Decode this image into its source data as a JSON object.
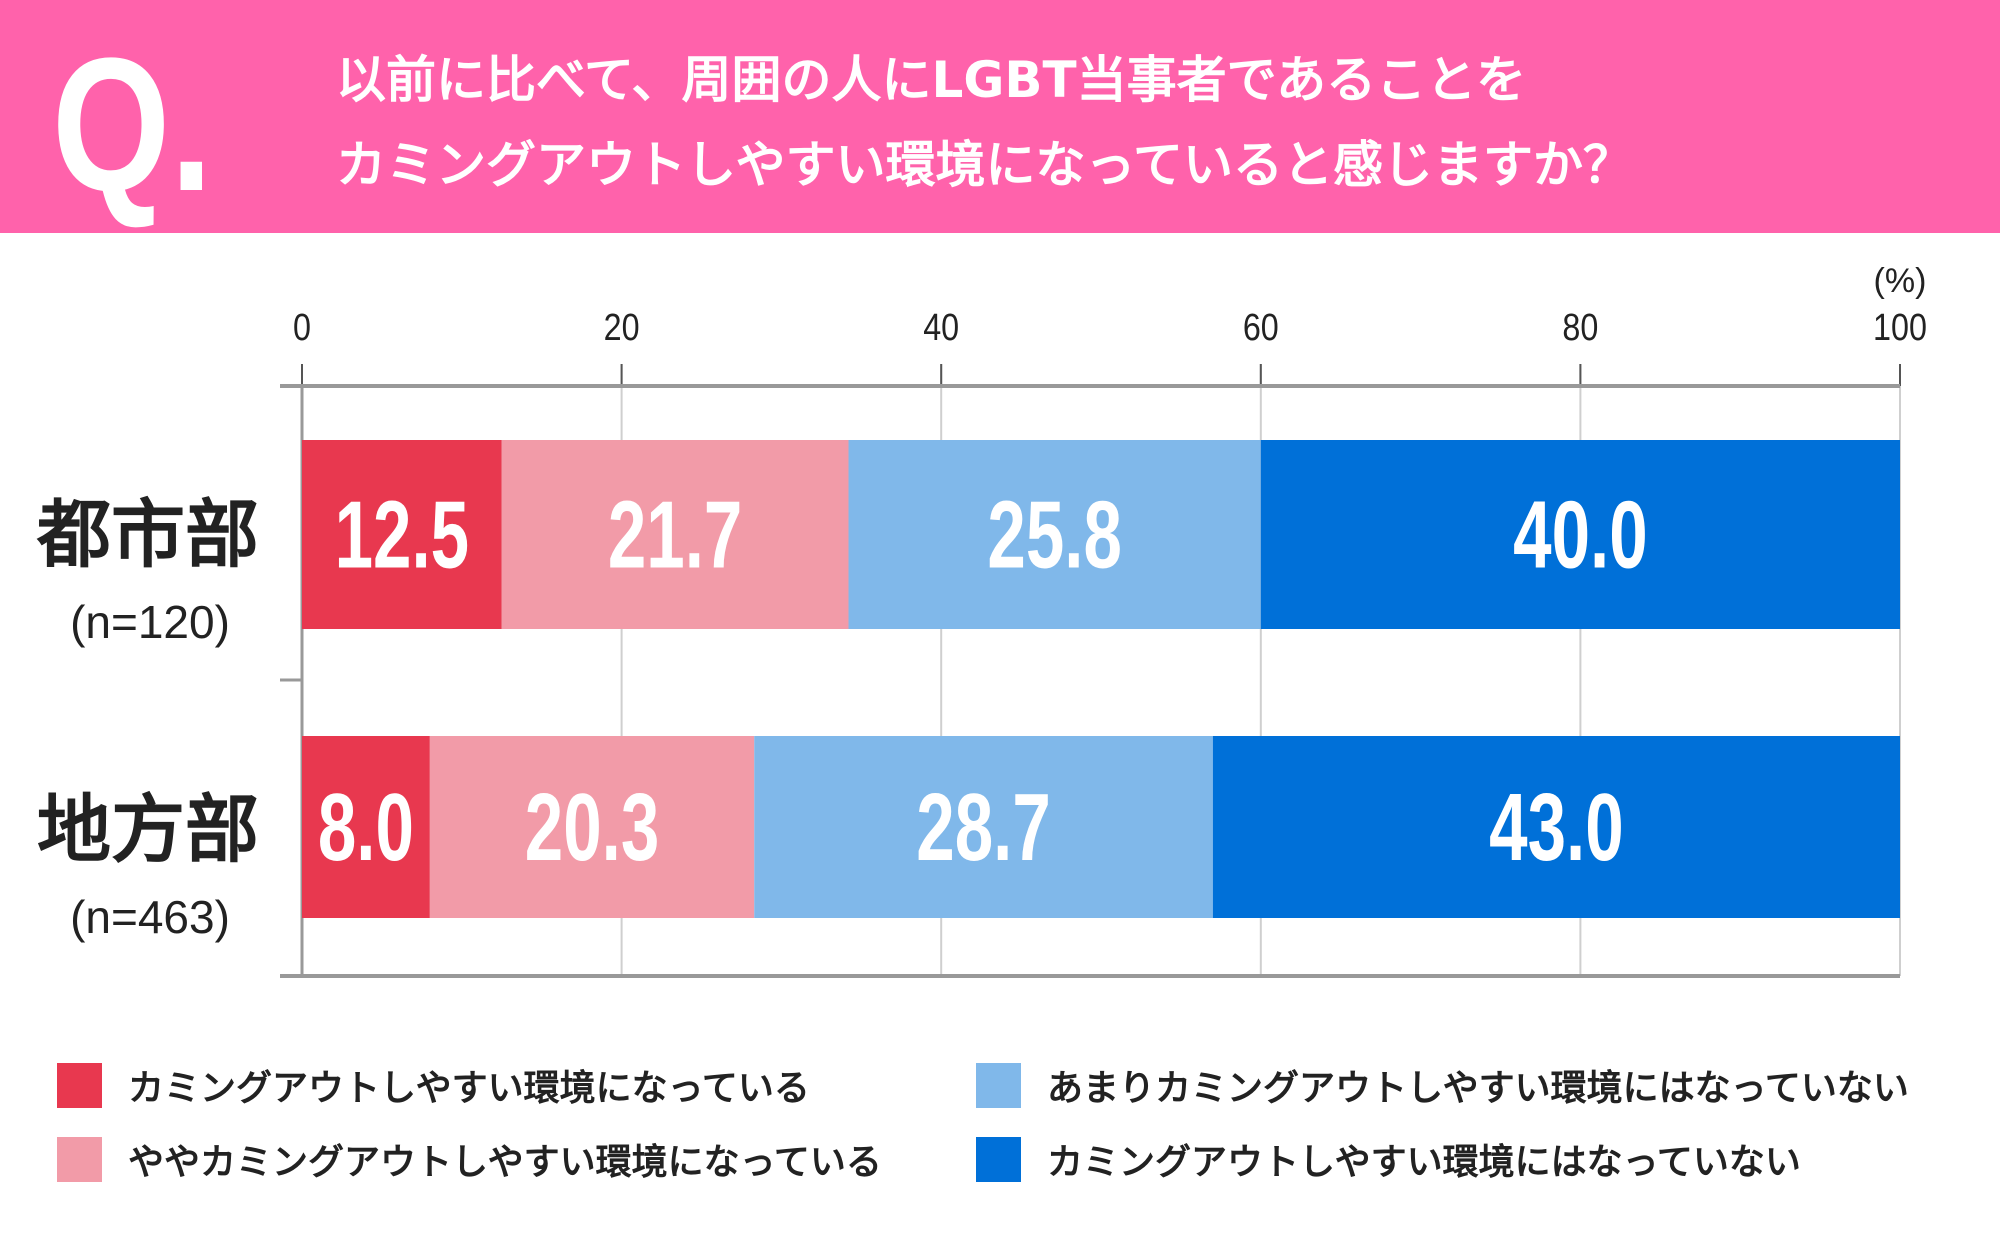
{
  "header": {
    "q_mark": "Q.",
    "question_line1": "以前に比べて、周囲の人にLGBT当事者であることを",
    "question_line2": "カミングアウトしやすい環境になっていると感じますか？",
    "background_color": "#ff62ab"
  },
  "chart_data": {
    "type": "bar",
    "orientation": "horizontal",
    "stacked": true,
    "unit_label": "(%)",
    "xlim": [
      0,
      100
    ],
    "x_ticks": [
      "0",
      "20",
      "40",
      "60",
      "80",
      "100"
    ],
    "grid": true,
    "legend_placement": "bottom",
    "categories": [
      {
        "name": "都市部",
        "n": "(n=120)"
      },
      {
        "name": "地方部",
        "n": "(n=463)"
      }
    ],
    "series": [
      {
        "name": "カミングアウトしやすい環境になっている",
        "color": "#e8384f",
        "values": [
          12.5,
          8.0
        ],
        "labels": [
          "12.5",
          "8.0"
        ]
      },
      {
        "name": "ややカミングアウトしやすい環境になっている",
        "color": "#f29ba8",
        "values": [
          21.7,
          20.3
        ],
        "labels": [
          "21.7",
          "20.3"
        ]
      },
      {
        "name": "あまりカミングアウトしやすい環境にはなっていない",
        "color": "#80b8ea",
        "values": [
          25.8,
          28.7
        ],
        "labels": [
          "25.8",
          "28.7"
        ]
      },
      {
        "name": "カミングアウトしやすい環境にはなっていない",
        "color": "#0070d8",
        "values": [
          40.0,
          43.0
        ],
        "labels": [
          "40.0",
          "43.0"
        ]
      }
    ]
  }
}
